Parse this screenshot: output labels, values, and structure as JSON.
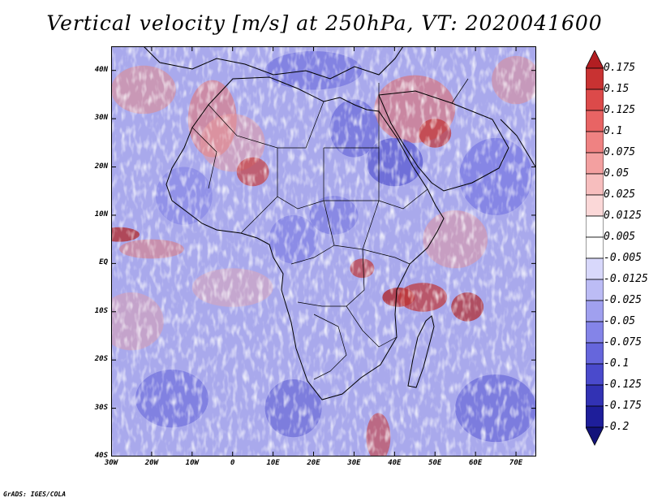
{
  "map": {
    "title": "Vertical velocity [m/s] at 250hPa, VT: 2020041600",
    "variable": "Vertical velocity",
    "units": "m/s",
    "level": "250hPa",
    "valid_time": "2020041600",
    "credit": "GrADS: IGES/COLA",
    "lon_range": [
      -30,
      75
    ],
    "lat_range": [
      -40,
      45
    ],
    "lon_ticks": [
      "30W",
      "20W",
      "10W",
      "0",
      "10E",
      "20E",
      "30E",
      "40E",
      "50E",
      "60E",
      "70E"
    ],
    "lon_tick_values": [
      -30,
      -20,
      -10,
      0,
      10,
      20,
      30,
      40,
      50,
      60,
      70
    ],
    "lat_ticks": [
      "40N",
      "30N",
      "20N",
      "10N",
      "EQ",
      "10S",
      "20S",
      "30S",
      "40S"
    ],
    "lat_tick_values": [
      40,
      30,
      20,
      10,
      0,
      -10,
      -20,
      -30,
      -40
    ],
    "colorbar": {
      "labels": [
        "0.175",
        "0.15",
        "0.125",
        "0.1",
        "0.075",
        "0.05",
        "0.025",
        "0.0125",
        "0.005",
        "-0.005",
        "-0.0125",
        "-0.025",
        "-0.05",
        "-0.075",
        "-0.1",
        "-0.125",
        "-0.175",
        "-0.2"
      ],
      "colors": [
        "#b21e22",
        "#c83232",
        "#dc4a4a",
        "#e86464",
        "#ef8282",
        "#f3a0a0",
        "#f7bebe",
        "#fbd8d8",
        "#ffffff",
        "#ffffff",
        "#d8d8fb",
        "#bcbcf5",
        "#a0a0ef",
        "#8484e8",
        "#6666dc",
        "#4a4acc",
        "#3232b4",
        "#1e1e9a",
        "#12127a"
      ]
    }
  }
}
